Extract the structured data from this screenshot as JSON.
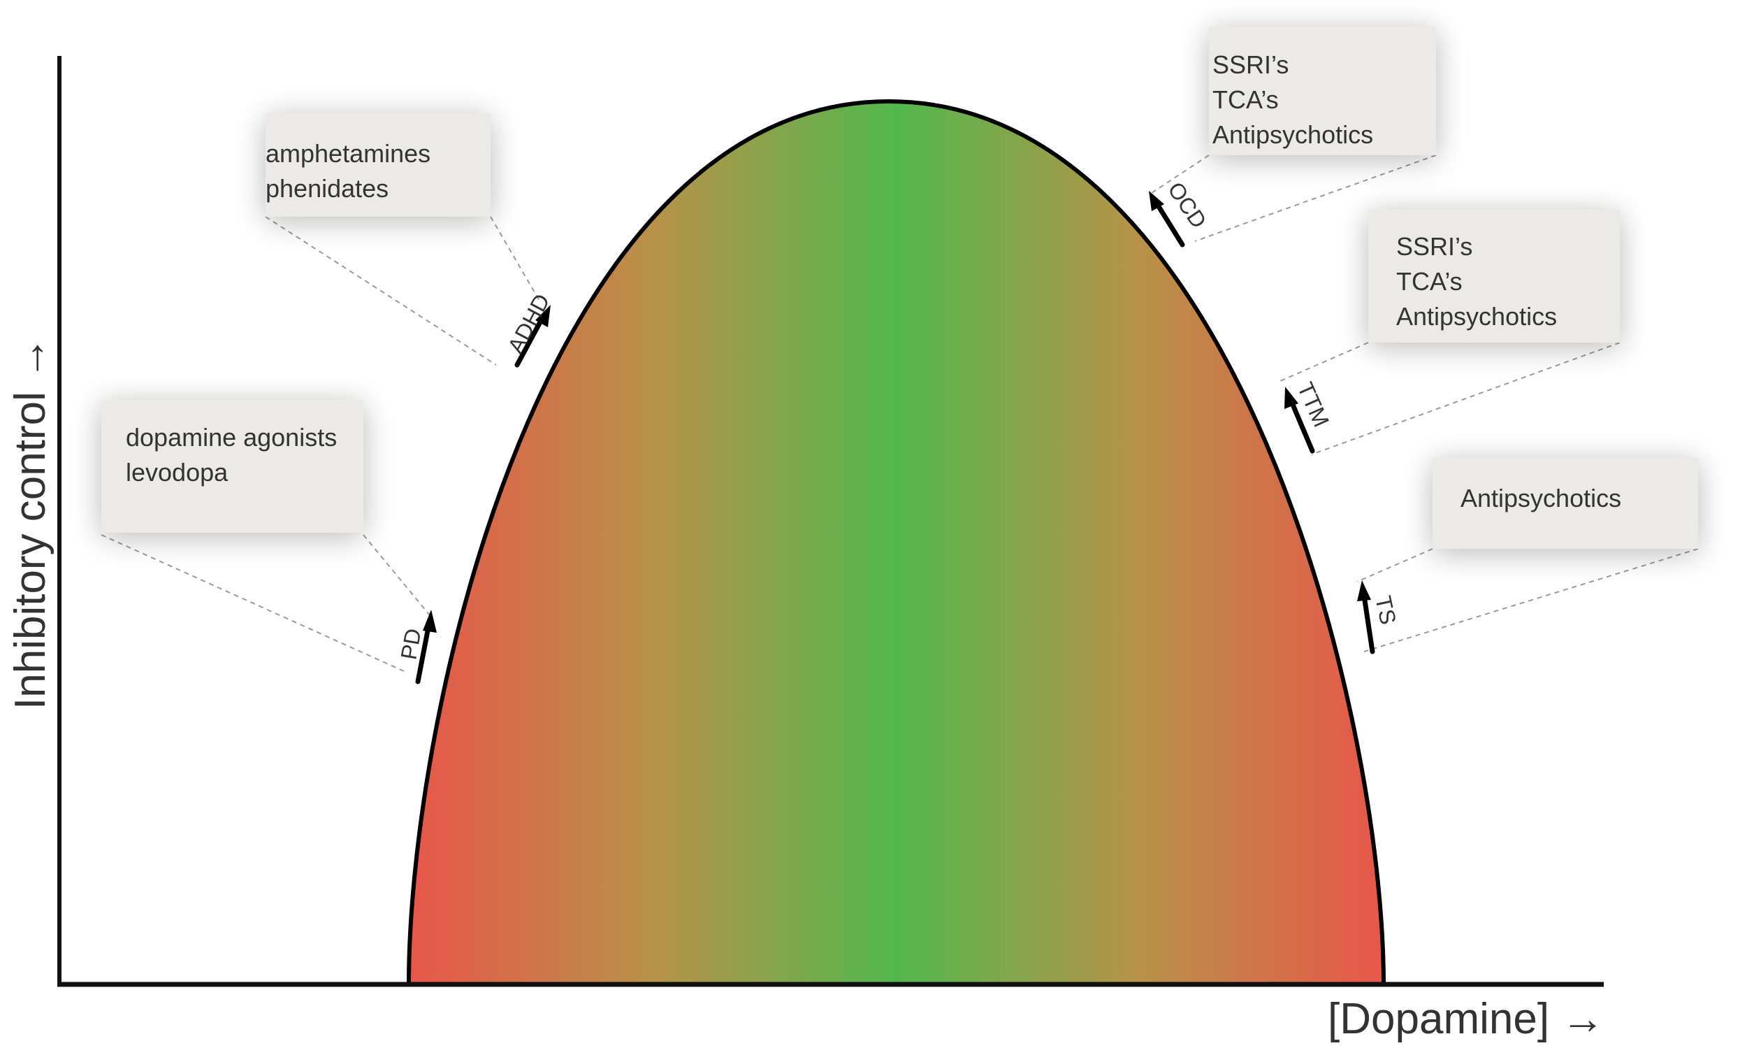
{
  "axes": {
    "y_label": "Inhibitory control →",
    "x_label": "[Dopamine] →"
  },
  "colors": {
    "curve_edge": "#e8564a",
    "curve_center": "#52b84c",
    "curve_outline": "#000000",
    "box_fill": "#eceae6",
    "leader_line": "#9a9a9a"
  },
  "disorders": {
    "pd": "PD",
    "adhd": "ADHD",
    "ocd": "OCD",
    "ttm": "TTM",
    "ts": "TS"
  },
  "treatments": {
    "pd": [
      "dopamine agonists",
      "levodopa"
    ],
    "adhd": [
      "amphetamines",
      "phenidates"
    ],
    "ocd": [
      "SSRI’s",
      "TCA’s",
      "Antipsychotics"
    ],
    "ttm": [
      "SSRI’s",
      "TCA’s",
      "Antipsychotics"
    ],
    "ts": [
      "Antipsychotics"
    ]
  }
}
